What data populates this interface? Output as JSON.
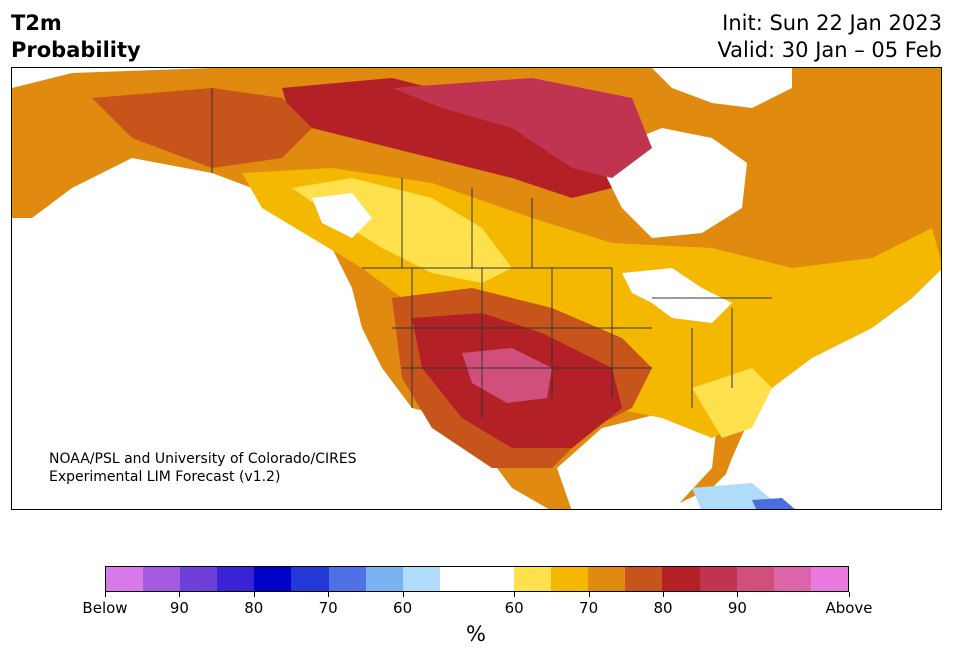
{
  "header": {
    "title_line1": "T2m",
    "title_line2": "Probability",
    "init": "Init: Sun 22 Jan 2023",
    "valid": "Valid: 30 Jan – 05 Feb"
  },
  "credit": {
    "line1": "NOAA/PSL and University of Colorado/CIRES",
    "line2": "Experimental LIM Forecast (v1.2)"
  },
  "colorbar": {
    "colors": [
      "#d87aea",
      "#a45be0",
      "#6f3fd9",
      "#3a22d6",
      "#0000c8",
      "#2438d8",
      "#5071e6",
      "#7ab3f2",
      "#afdcfb",
      "#ffffff",
      "#ffffff",
      "#ffe14d",
      "#f4b800",
      "#e08a10",
      "#c7541a",
      "#b32025",
      "#c13451",
      "#d1507b",
      "#dc64a8",
      "#e97ae0"
    ],
    "ticks": [
      "Below",
      "90",
      "80",
      "70",
      "60",
      "60",
      "70",
      "80",
      "90",
      "Above"
    ],
    "unit": "%"
  },
  "map_colors": {
    "background": "#ffffff",
    "level_60": "#ffe14d",
    "level_70": "#f4b800",
    "level_70b": "#e08a10",
    "level_80": "#c7541a",
    "level_80b": "#b32025",
    "level_90": "#c13451",
    "level_above": "#d1507b",
    "below_60": "#afdcfb",
    "below_70": "#7ab3f2",
    "below_80": "#4a6ee0"
  }
}
